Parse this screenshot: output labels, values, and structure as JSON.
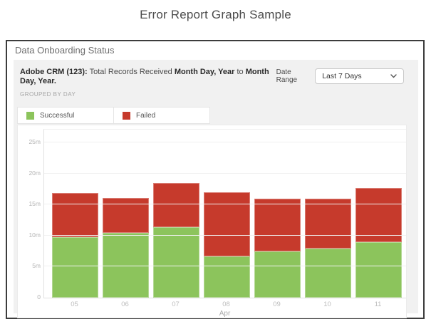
{
  "page": {
    "title": "Error Report Graph Sample"
  },
  "panel": {
    "header": "Data Onboarding Status",
    "report": {
      "title_bold": "Adobe CRM (123):",
      "title_text": " Total Records Received ",
      "range_start": "Month Day, Year",
      "range_mid": " to ",
      "range_end": "Month Day, Year.",
      "grouped_by": "GROUPED BY DAY"
    },
    "date_range": {
      "label": "Date Range",
      "selected": "Last 7 Days"
    }
  },
  "legend": {
    "items": [
      {
        "label": "Successful",
        "color": "#8cc45c"
      },
      {
        "label": "Failed",
        "color": "#c63a2c"
      }
    ]
  },
  "chart_data": {
    "type": "bar",
    "stacked": true,
    "title": "Adobe CRM (123): Total Records Received Month Day, Year to Month Day, Year.",
    "categories": [
      "05",
      "06",
      "07",
      "08",
      "09",
      "10",
      "11"
    ],
    "series": [
      {
        "name": "Successful",
        "color": "#8cc45c",
        "values": [
          9.8,
          10.4,
          11.4,
          6.6,
          7.4,
          7.9,
          9.0
        ]
      },
      {
        "name": "Failed",
        "color": "#c63a2c",
        "values": [
          7.1,
          5.6,
          7.1,
          10.4,
          8.5,
          8.0,
          8.7
        ]
      }
    ],
    "unit": "millions",
    "xlabel": "Apr",
    "ylabel": "",
    "ylim": [
      0,
      25
    ],
    "y_ticks": [
      {
        "value": 0,
        "label": "0"
      },
      {
        "value": 5,
        "label": "5m"
      },
      {
        "value": 10,
        "label": "10m"
      },
      {
        "value": 15,
        "label": "15m"
      },
      {
        "value": 20,
        "label": "20m"
      },
      {
        "value": 25,
        "label": "25m"
      }
    ],
    "grid": true,
    "legend_position": "top-left"
  }
}
